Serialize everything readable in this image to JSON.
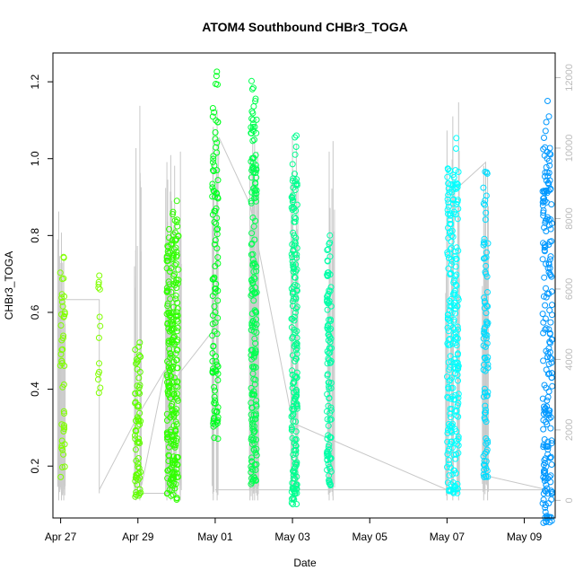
{
  "chart_data": {
    "type": "scatter",
    "title": "ATOM4 Southbound CHBr3_TOGA",
    "xlabel": "Date",
    "ylabel": "CHBr3_TOGA",
    "xlim": [
      -0.2,
      12.8
    ],
    "ylim": [
      0.065,
      1.275
    ],
    "y2lim": [
      -500,
      12700
    ],
    "x_ticks": [
      {
        "value": 0,
        "label": "Apr 27"
      },
      {
        "value": 2,
        "label": "Apr 29"
      },
      {
        "value": 4,
        "label": "May 01"
      },
      {
        "value": 6,
        "label": "May 03"
      },
      {
        "value": 8,
        "label": "May 05"
      },
      {
        "value": 10,
        "label": "May 07"
      },
      {
        "value": 12,
        "label": "May 09"
      }
    ],
    "y_ticks": [
      {
        "value": 0.2,
        "label": "0.2"
      },
      {
        "value": 0.4,
        "label": "0.4"
      },
      {
        "value": 0.6,
        "label": "0.6"
      },
      {
        "value": 0.8,
        "label": "0.8"
      },
      {
        "value": 1.0,
        "label": "1.0"
      },
      {
        "value": 1.2,
        "label": "1.2"
      }
    ],
    "y2_ticks": [
      {
        "value": 0,
        "label": "0"
      },
      {
        "value": 2000,
        "label": "2000"
      },
      {
        "value": 4000,
        "label": "4000"
      },
      {
        "value": 6000,
        "label": "6000"
      },
      {
        "value": 8000,
        "label": "8000"
      },
      {
        "value": 10000,
        "label": "10000"
      },
      {
        "value": 12000,
        "label": "12000"
      }
    ],
    "clusters": [
      {
        "x": 0.05,
        "x_spread": 0.12,
        "y_min": 0.17,
        "y_max": 0.77,
        "n": 45,
        "color": "#80ff00"
      },
      {
        "x": 1.0,
        "x_spread": 0.06,
        "y_min": 0.37,
        "y_max": 0.74,
        "n": 14,
        "color": "#80ff00"
      },
      {
        "x": 2.0,
        "x_spread": 0.15,
        "y_min": 0.12,
        "y_max": 0.54,
        "n": 70,
        "color": "#60ff00"
      },
      {
        "x": 2.9,
        "x_spread": 0.3,
        "y_min": 0.11,
        "y_max": 0.89,
        "n": 260,
        "color": "#30ff00"
      },
      {
        "x": 4.0,
        "x_spread": 0.15,
        "y_min": 0.27,
        "y_max": 1.24,
        "n": 110,
        "color": "#00ff20"
      },
      {
        "x": 5.0,
        "x_spread": 0.15,
        "y_min": 0.15,
        "y_max": 1.24,
        "n": 190,
        "color": "#00ff50"
      },
      {
        "x": 6.05,
        "x_spread": 0.15,
        "y_min": 0.1,
        "y_max": 1.06,
        "n": 190,
        "color": "#00ff90"
      },
      {
        "x": 6.95,
        "x_spread": 0.12,
        "y_min": 0.15,
        "y_max": 0.8,
        "n": 110,
        "color": "#00ffa8"
      },
      {
        "x": 10.15,
        "x_spread": 0.3,
        "y_min": 0.12,
        "y_max": 1.09,
        "n": 230,
        "color": "#00ffff"
      },
      {
        "x": 11.0,
        "x_spread": 0.12,
        "y_min": 0.17,
        "y_max": 0.98,
        "n": 90,
        "color": "#00ddff"
      },
      {
        "x": 12.6,
        "x_spread": 0.25,
        "y_min": 0.05,
        "y_max": 1.15,
        "n": 210,
        "color": "#0098ff"
      }
    ],
    "altitude_spikes": [
      {
        "x": -0.05,
        "alt": 8200
      },
      {
        "x": 0.02,
        "alt": 7600
      },
      {
        "x": 0.08,
        "alt": 6800
      },
      {
        "x": 1.95,
        "alt": 10000
      },
      {
        "x": 2.05,
        "alt": 11200
      },
      {
        "x": 2.75,
        "alt": 9600
      },
      {
        "x": 2.85,
        "alt": 9800
      },
      {
        "x": 2.95,
        "alt": 9500
      },
      {
        "x": 3.1,
        "alt": 9900
      },
      {
        "x": 3.95,
        "alt": 10600
      },
      {
        "x": 4.05,
        "alt": 11100
      },
      {
        "x": 4.9,
        "alt": 9700
      },
      {
        "x": 4.97,
        "alt": 10200
      },
      {
        "x": 5.02,
        "alt": 10400
      },
      {
        "x": 5.1,
        "alt": 9900
      },
      {
        "x": 6.0,
        "alt": 10300
      },
      {
        "x": 6.1,
        "alt": 10100
      },
      {
        "x": 6.95,
        "alt": 9900
      },
      {
        "x": 7.05,
        "alt": 10200
      },
      {
        "x": 10.0,
        "alt": 10500
      },
      {
        "x": 10.15,
        "alt": 10900
      },
      {
        "x": 10.3,
        "alt": 11300
      },
      {
        "x": 10.95,
        "alt": 9500
      },
      {
        "x": 11.05,
        "alt": 9300
      }
    ],
    "altitude_path": [
      {
        "x": -0.05,
        "alt": 200
      },
      {
        "x": 0.0,
        "alt": 5700
      },
      {
        "x": 1.0,
        "alt": 5700
      },
      {
        "x": 1.0,
        "alt": 200
      },
      {
        "x": 1.0,
        "alt": 300
      },
      {
        "x": 2.05,
        "alt": 2500
      },
      {
        "x": 2.7,
        "alt": 3700
      },
      {
        "x": 2.1,
        "alt": 450
      },
      {
        "x": 2.0,
        "alt": 600
      },
      {
        "x": 2.1,
        "alt": 200
      },
      {
        "x": 3.0,
        "alt": 200
      },
      {
        "x": 3.0,
        "alt": 3500
      },
      {
        "x": 4.0,
        "alt": 4900
      },
      {
        "x": 4.1,
        "alt": 10300
      },
      {
        "x": 4.9,
        "alt": 8400
      },
      {
        "x": 5.9,
        "alt": 2800
      },
      {
        "x": 6.0,
        "alt": 2200
      },
      {
        "x": 10.0,
        "alt": 300
      },
      {
        "x": 10.2,
        "alt": 8800
      },
      {
        "x": 11.0,
        "alt": 9600
      },
      {
        "x": 11.0,
        "alt": 700
      },
      {
        "x": 12.6,
        "alt": 300
      },
      {
        "x": 4.0,
        "alt": 300
      },
      {
        "x": 5.0,
        "alt": 300
      },
      {
        "x": 5.0,
        "alt": 7000
      }
    ]
  }
}
